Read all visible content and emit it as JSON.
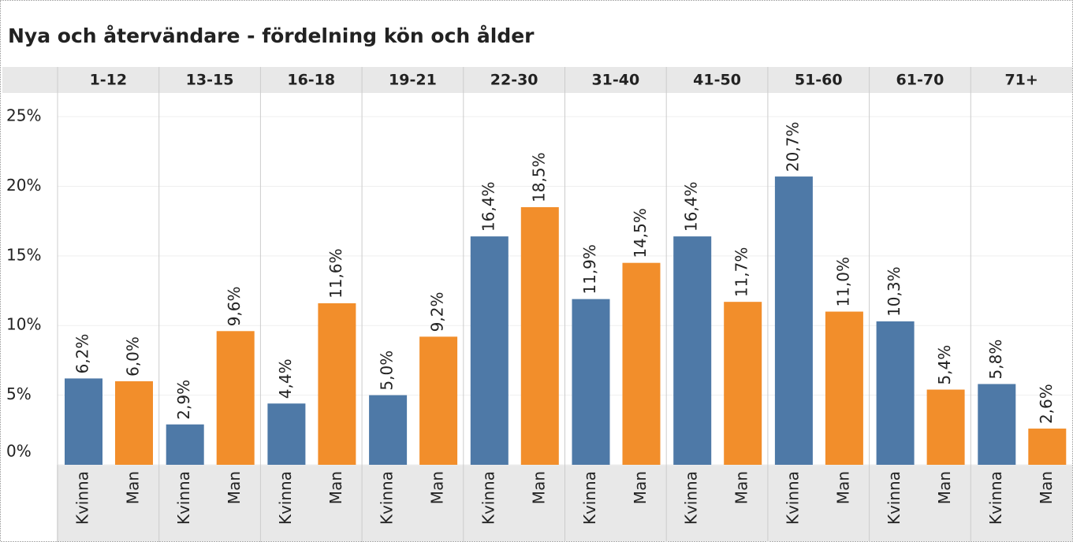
{
  "chart_data": {
    "type": "bar",
    "title": "Nya och återvändare - fördelning kön och ålder",
    "categories": [
      "1-12",
      "13-15",
      "16-18",
      "19-21",
      "22-30",
      "31-40",
      "41-50",
      "51-60",
      "61-70",
      "71+"
    ],
    "series": [
      {
        "name": "Kvinna",
        "color": "#4e79a7",
        "values": [
          6.2,
          2.9,
          4.4,
          5.0,
          16.4,
          11.9,
          16.4,
          20.7,
          10.3,
          5.8
        ],
        "value_labels": [
          "6,2%",
          "2,9%",
          "4,4%",
          "5,0%",
          "16,4%",
          "11,9%",
          "16,4%",
          "20,7%",
          "10,3%",
          "5,8%"
        ]
      },
      {
        "name": "Man",
        "color": "#f28e2b",
        "values": [
          6.0,
          9.6,
          11.6,
          9.2,
          18.5,
          14.5,
          11.7,
          11.0,
          5.4,
          2.6
        ],
        "value_labels": [
          "6,0%",
          "9,6%",
          "11,6%",
          "9,2%",
          "18,5%",
          "14,5%",
          "11,7%",
          "11,0%",
          "5,4%",
          "2,6%"
        ]
      }
    ],
    "ylim": [
      0,
      26.7
    ],
    "yticks": [
      {
        "value": 0,
        "label": "0%"
      },
      {
        "value": 5,
        "label": "5%"
      },
      {
        "value": 10,
        "label": "10%"
      },
      {
        "value": 15,
        "label": "15%"
      },
      {
        "value": 20,
        "label": "20%"
      },
      {
        "value": 25,
        "label": "25%"
      }
    ],
    "grid": true
  }
}
